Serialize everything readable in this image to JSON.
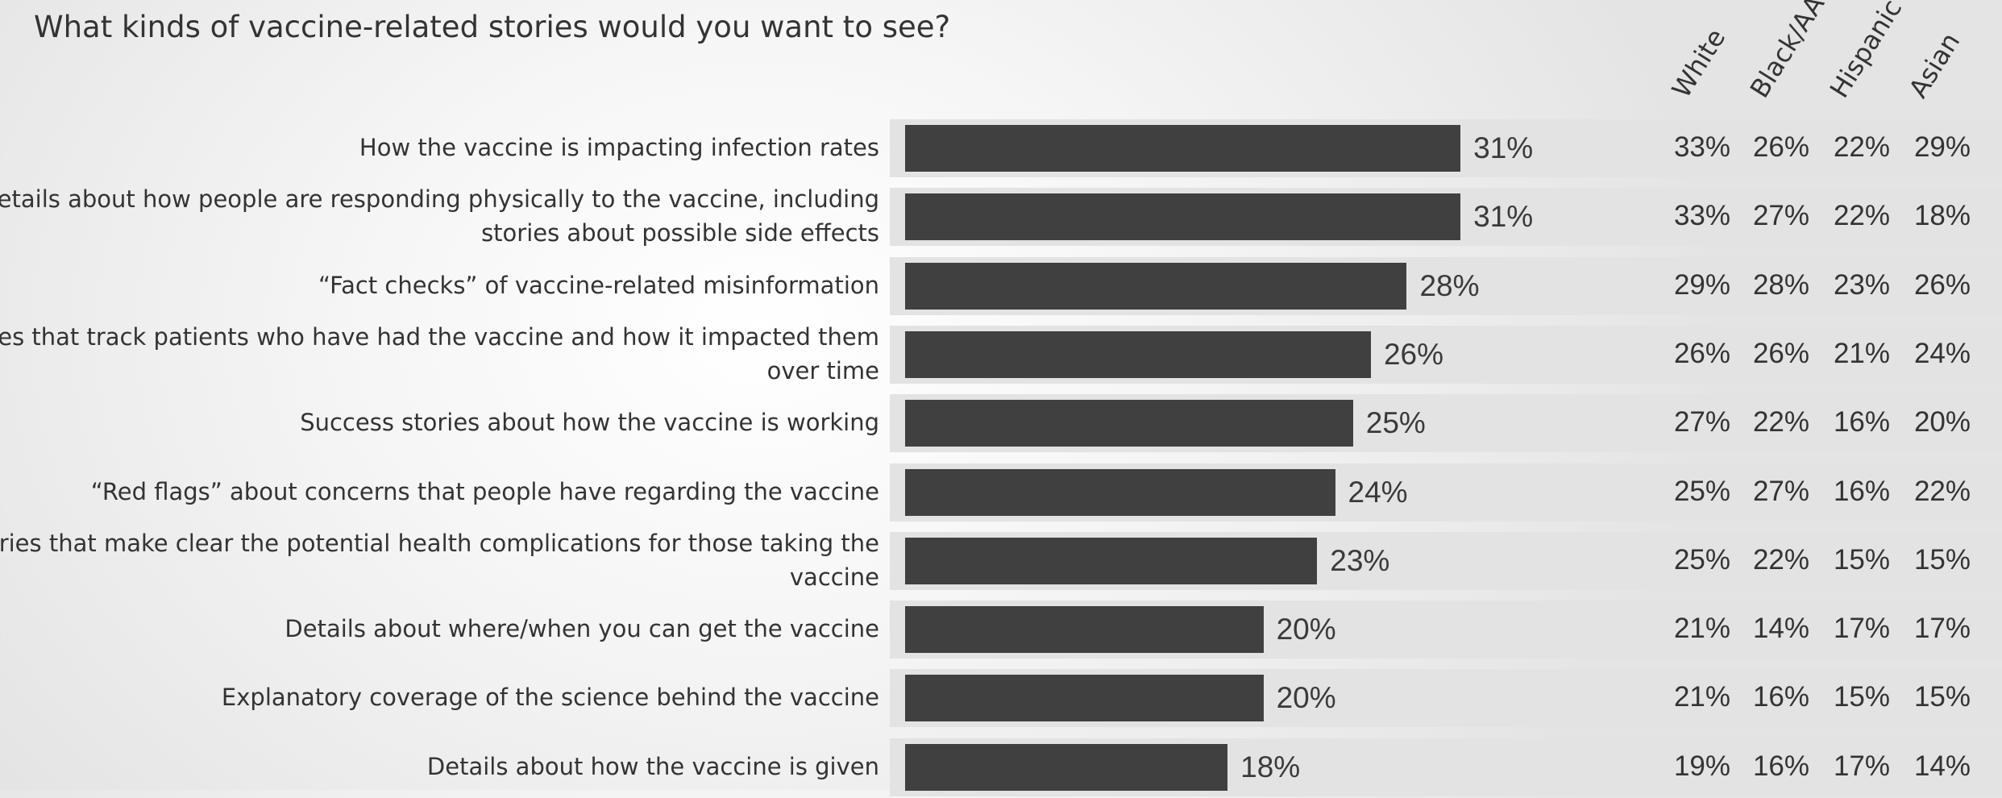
{
  "title": "What kinds of vaccine-related stories would you want to see?",
  "chart_data": {
    "type": "bar",
    "orientation": "horizontal",
    "title": "What kinds of vaccine-related stories would you want to see?",
    "xlim": [
      0,
      40
    ],
    "categories": [
      "How the vaccine is impacting infection rates",
      "Details about how people are responding physically to the vaccine, including stories about possible side effects",
      "“Fact checks” of vaccine-related misinformation",
      "Stories that track patients who have had the vaccine and how it impacted them over time",
      "Success stories about how the vaccine is working",
      "“Red flags” about concerns that people have regarding the vaccine",
      "Stories that make clear the potential health complications for those taking the vaccine",
      "Details about where/when you can get the vaccine",
      "Explanatory coverage of the science behind the vaccine",
      "Details about how the vaccine is given"
    ],
    "values": [
      31,
      31,
      28,
      26,
      25,
      24,
      23,
      20,
      20,
      18
    ],
    "value_labels": [
      "31%",
      "31%",
      "28%",
      "26%",
      "25%",
      "24%",
      "23%",
      "20%",
      "20%",
      "18%"
    ],
    "table_columns": [
      "White",
      "Black/AA",
      "Hispanic",
      "Asian"
    ],
    "table_rows": [
      [
        "33%",
        "26%",
        "22%",
        "29%"
      ],
      [
        "33%",
        "27%",
        "22%",
        "18%"
      ],
      [
        "29%",
        "28%",
        "23%",
        "26%"
      ],
      [
        "26%",
        "26%",
        "21%",
        "24%"
      ],
      [
        "27%",
        "22%",
        "16%",
        "20%"
      ],
      [
        "25%",
        "27%",
        "16%",
        "22%"
      ],
      [
        "25%",
        "22%",
        "15%",
        "15%"
      ],
      [
        "21%",
        "14%",
        "17%",
        "17%"
      ],
      [
        "21%",
        "16%",
        "15%",
        "15%"
      ],
      [
        "19%",
        "16%",
        "17%",
        "14%"
      ]
    ],
    "colors": {
      "bar": "#404040",
      "band": "#e3e3e3",
      "text": "#333333"
    }
  }
}
